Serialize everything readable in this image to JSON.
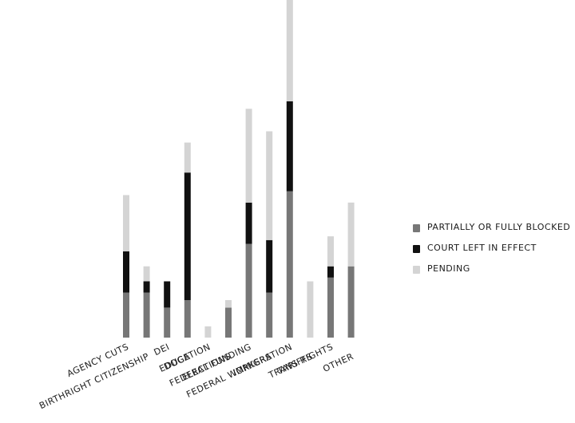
{
  "chart_data": {
    "type": "bar",
    "stacked": true,
    "categories": [
      "AGENCY CUTS",
      "BIRTHRIGHT CITIZENSHIP",
      "DEI",
      "DOGE",
      "EDUCATION",
      "ELECTIONS",
      "FEDERAL FUNDING",
      "FEDERAL WORKERS",
      "IMMIGRATION",
      "TARIFFS",
      "TRANS RIGHTS",
      "OTHER"
    ],
    "series": [
      {
        "name": "PARTIALLY OR FULLY BLOCKED",
        "color": "#777777",
        "values": [
          12,
          12,
          8,
          10,
          0,
          8,
          25,
          12,
          39,
          0,
          16,
          19
        ]
      },
      {
        "name": "COURT LEFT IN EFFECT",
        "color": "#111111",
        "values": [
          11,
          3,
          7,
          34,
          0,
          0,
          11,
          14,
          24,
          0,
          3,
          0
        ]
      },
      {
        "name": "PENDING",
        "color": "#d4d4d4",
        "values": [
          15,
          4,
          0,
          8,
          3,
          2,
          25,
          29,
          29,
          15,
          8,
          17
        ]
      }
    ],
    "legend_position": "right",
    "grid": false
  }
}
